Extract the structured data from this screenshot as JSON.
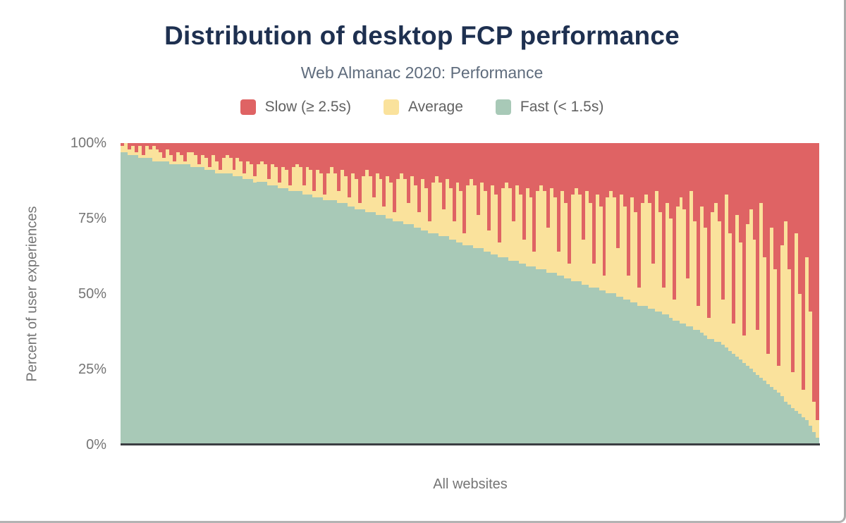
{
  "header": {
    "title": "Distribution of desktop FCP performance",
    "subtitle": "Web Almanac 2020: Performance"
  },
  "axes": {
    "y_title": "Percent of user experiences",
    "x_title": "All websites",
    "y_ticks": [
      {
        "label": "100%",
        "value": 100
      },
      {
        "label": "75%",
        "value": 75
      },
      {
        "label": "50%",
        "value": 50
      },
      {
        "label": "25%",
        "value": 25
      },
      {
        "label": "0%",
        "value": 0
      }
    ]
  },
  "colors": {
    "slow": "#df6364",
    "average": "#fae29c",
    "fast": "#a8c9b7",
    "title": "#1e3050",
    "axis_text": "#757575",
    "axis_line": "#3b3e42"
  },
  "chart_data": {
    "type": "bar",
    "stacked": true,
    "stack_total": 100,
    "title": "Distribution of desktop FCP performance",
    "subtitle": "Web Almanac 2020: Performance",
    "xlabel": "All websites",
    "ylabel": "Percent of user experiences",
    "ylim": [
      0,
      100
    ],
    "y_tick_labels": [
      "100%",
      "75%",
      "50%",
      "25%",
      "0%"
    ],
    "legend_position": "top",
    "grid": false,
    "x_tick_labels_visible": false,
    "series": [
      {
        "name": "Fast (< 1.5s)",
        "color": "#a8c9b7",
        "values": [
          97,
          97,
          96,
          96,
          96,
          95,
          95,
          95,
          95,
          94,
          94,
          94,
          94,
          94,
          93,
          93,
          93,
          93,
          93,
          93,
          92,
          92,
          92,
          92,
          91,
          91,
          91,
          90,
          90,
          90,
          90,
          90,
          89,
          89,
          89,
          88,
          88,
          88,
          87,
          87,
          87,
          87,
          86,
          86,
          86,
          85,
          85,
          85,
          84,
          84,
          84,
          84,
          83,
          83,
          83,
          82,
          82,
          82,
          81,
          81,
          81,
          81,
          80,
          80,
          80,
          79,
          79,
          78,
          78,
          78,
          77,
          77,
          77,
          76,
          76,
          76,
          75,
          75,
          74,
          74,
          74,
          73,
          73,
          73,
          72,
          72,
          71,
          71,
          70,
          70,
          70,
          69,
          69,
          69,
          68,
          68,
          67,
          67,
          66,
          66,
          66,
          65,
          65,
          65,
          64,
          64,
          63,
          63,
          62,
          62,
          62,
          61,
          61,
          61,
          60,
          60,
          59,
          59,
          59,
          58,
          58,
          58,
          57,
          57,
          57,
          56,
          56,
          55,
          55,
          54,
          54,
          54,
          53,
          53,
          52,
          52,
          52,
          51,
          51,
          50,
          50,
          50,
          49,
          49,
          48,
          48,
          47,
          47,
          46,
          46,
          46,
          45,
          45,
          44,
          44,
          43,
          43,
          42,
          41,
          41,
          40,
          40,
          39,
          39,
          38,
          38,
          37,
          36,
          35,
          35,
          34,
          34,
          33,
          32,
          31,
          30,
          29,
          28,
          27,
          26,
          25,
          24,
          23,
          22,
          21,
          20,
          19,
          18,
          17,
          16,
          14,
          13,
          12,
          11,
          10,
          9,
          8,
          6,
          4,
          2
        ]
      },
      {
        "name": "Average",
        "color": "#fae29c",
        "values": [
          2,
          3,
          2,
          3,
          1,
          4,
          1,
          4,
          3,
          5,
          4,
          3,
          1,
          4,
          3,
          1,
          4,
          3,
          1,
          4,
          5,
          4,
          1,
          4,
          4,
          1,
          5,
          4,
          1,
          5,
          6,
          5,
          2,
          6,
          5,
          2,
          6,
          5,
          2,
          6,
          7,
          6,
          2,
          7,
          6,
          2,
          7,
          6,
          2,
          8,
          9,
          8,
          3,
          9,
          8,
          2,
          9,
          8,
          2,
          9,
          11,
          9,
          4,
          11,
          9,
          3,
          11,
          10,
          2,
          11,
          14,
          12,
          5,
          14,
          12,
          3,
          14,
          12,
          3,
          14,
          16,
          15,
          7,
          16,
          14,
          5,
          17,
          14,
          4,
          17,
          19,
          18,
          9,
          19,
          17,
          6,
          20,
          17,
          4,
          20,
          22,
          21,
          11,
          22,
          20,
          7,
          23,
          20,
          5,
          23,
          25,
          24,
          13,
          25,
          23,
          8,
          26,
          23,
          5,
          26,
          28,
          26,
          15,
          28,
          25,
          8,
          28,
          25,
          5,
          29,
          31,
          29,
          15,
          31,
          28,
          8,
          31,
          28,
          5,
          32,
          34,
          32,
          16,
          34,
          31,
          8,
          35,
          30,
          6,
          34,
          37,
          35,
          15,
          40,
          33,
          9,
          37,
          33,
          7,
          38,
          42,
          38,
          16,
          45,
          36,
          8,
          42,
          36,
          7,
          42,
          46,
          40,
          15,
          51,
          39,
          10,
          47,
          39,
          9,
          47,
          53,
          44,
          15,
          58,
          41,
          10,
          53,
          40,
          9,
          50,
          60,
          45,
          12,
          59,
          40,
          9,
          54,
          38,
          10,
          6
        ]
      },
      {
        "name": "Slow (≥ 2.5s)",
        "color": "#df6364",
        "values": [
          1,
          0,
          2,
          1,
          3,
          1,
          4,
          1,
          2,
          1,
          2,
          3,
          5,
          2,
          4,
          6,
          3,
          4,
          6,
          3,
          3,
          4,
          7,
          4,
          5,
          8,
          4,
          6,
          9,
          5,
          4,
          5,
          9,
          5,
          6,
          10,
          6,
          7,
          11,
          7,
          6,
          7,
          12,
          7,
          8,
          13,
          8,
          9,
          14,
          8,
          7,
          8,
          14,
          8,
          9,
          16,
          9,
          10,
          17,
          10,
          8,
          10,
          16,
          9,
          11,
          18,
          10,
          12,
          20,
          11,
          9,
          11,
          18,
          10,
          12,
          21,
          11,
          13,
          23,
          12,
          10,
          12,
          20,
          11,
          14,
          23,
          12,
          15,
          26,
          13,
          11,
          13,
          22,
          12,
          15,
          26,
          13,
          16,
          30,
          14,
          12,
          14,
          24,
          13,
          16,
          29,
          14,
          17,
          33,
          15,
          13,
          15,
          26,
          14,
          17,
          32,
          15,
          18,
          36,
          16,
          14,
          16,
          28,
          15,
          18,
          36,
          16,
          20,
          40,
          17,
          15,
          17,
          32,
          16,
          20,
          40,
          17,
          21,
          44,
          18,
          16,
          18,
          35,
          17,
          21,
          44,
          18,
          23,
          48,
          20,
          17,
          20,
          40,
          16,
          23,
          48,
          20,
          25,
          52,
          21,
          18,
          22,
          45,
          16,
          26,
          54,
          21,
          28,
          58,
          23,
          20,
          26,
          52,
          17,
          30,
          60,
          24,
          33,
          64,
          27,
          22,
          32,
          62,
          20,
          38,
          70,
          28,
          42,
          74,
          34,
          26,
          42,
          76,
          30,
          50,
          82,
          38,
          56,
          86,
          92
        ]
      }
    ]
  }
}
